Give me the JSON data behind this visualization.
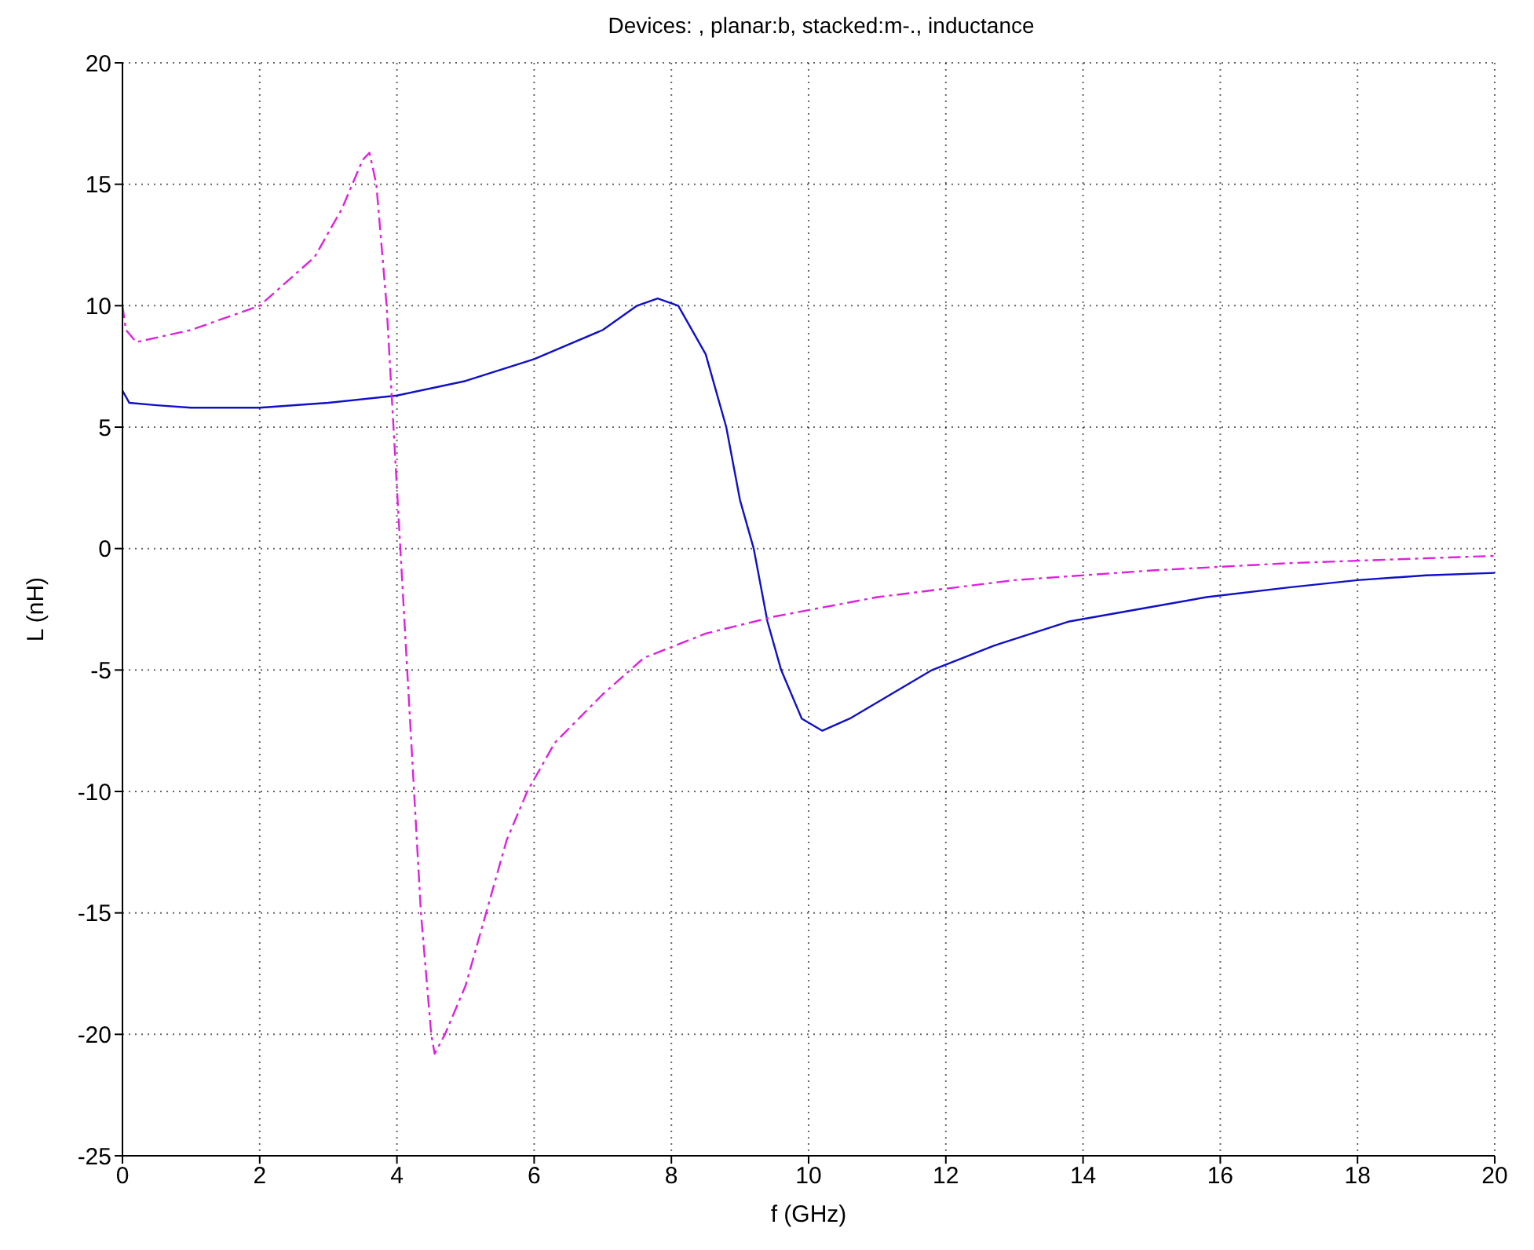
{
  "chart_data": {
    "type": "line",
    "title": "Devices: , planar:b, stacked:m-., inductance",
    "xlabel": "f (GHz)",
    "ylabel": "L (nH)",
    "xlim": [
      0,
      20
    ],
    "xticks": [
      0,
      2,
      4,
      6,
      8,
      10,
      12,
      14,
      16,
      18,
      20
    ],
    "ylim": [
      -25,
      20
    ],
    "yticks": [
      -25,
      -20,
      -15,
      -10,
      -5,
      0,
      5,
      10,
      15,
      20
    ],
    "grid": true,
    "legend": false,
    "marker": "none",
    "series": [
      {
        "color": "#1010c8",
        "line_style": "solid",
        "x": [
          0,
          0.1,
          0.5,
          1,
          2,
          3,
          4,
          5,
          6,
          7,
          7.5,
          7.8,
          8.1,
          8.5,
          8.8,
          9.0,
          9.2,
          9.4,
          9.6,
          9.9,
          10.2,
          10.6,
          11.2,
          11.8,
          12.7,
          13.8,
          14.8,
          15.8,
          17,
          18,
          19,
          20
        ],
        "values": [
          6.5,
          6,
          5.9,
          5.8,
          5.8,
          6,
          6.3,
          6.9,
          7.8,
          9,
          10,
          10.3,
          10,
          8,
          5,
          2,
          0,
          -3,
          -5,
          -7,
          -7.5,
          -7,
          -6,
          -5,
          -4,
          -3,
          -2.5,
          -2,
          -1.6,
          -1.3,
          -1.1,
          -1
        ]
      },
      {
        "color": "#e020e0",
        "line_style": "dashed",
        "x": [
          0,
          0.05,
          0.2,
          1,
          2,
          2.8,
          3.2,
          3.5,
          3.6,
          3.7,
          3.85,
          3.95,
          4.05,
          4.15,
          4.25,
          4.35,
          4.5,
          4.55,
          4.7,
          5,
          5.3,
          5.6,
          5.9,
          6.3,
          7,
          7.6,
          8.5,
          9.5,
          11,
          13,
          15,
          17,
          19,
          20
        ],
        "values": [
          10,
          9,
          8.5,
          9,
          10,
          12,
          14,
          16,
          16.3,
          15,
          10,
          5,
          0,
          -5,
          -10,
          -15,
          -20,
          -20.8,
          -20,
          -18,
          -15,
          -12,
          -10,
          -8,
          -6,
          -4.5,
          -3.5,
          -2.8,
          -2,
          -1.3,
          -0.9,
          -0.6,
          -0.4,
          -0.3
        ]
      }
    ]
  }
}
